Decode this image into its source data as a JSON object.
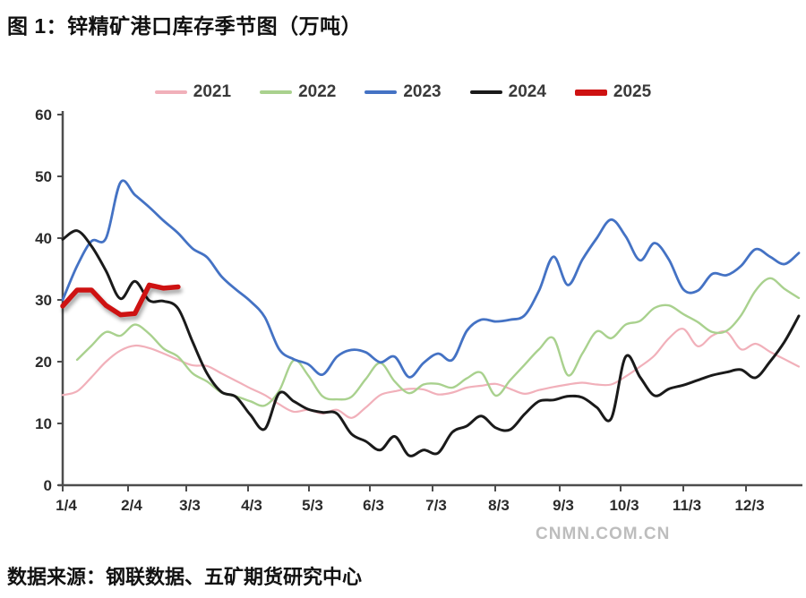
{
  "title": "图 1：锌精矿港口库存季节图（万吨）",
  "source": "数据来源：钢联数据、五矿期货研究中心",
  "watermark": "CNMN.COM.CN",
  "chart_data": {
    "type": "line",
    "title": "锌精矿港口库存季节图",
    "unit": "万吨",
    "x_axis": "weekly dates, overlaid seasonal years",
    "x_tick_labels": [
      "1/4",
      "2/4",
      "3/3",
      "4/3",
      "5/3",
      "6/3",
      "7/3",
      "8/3",
      "9/3",
      "10/3",
      "11/3",
      "12/3"
    ],
    "ylim": [
      0,
      60
    ],
    "y_ticks": [
      0,
      10,
      20,
      30,
      40,
      50,
      60
    ],
    "grid": false,
    "legend_position": "top",
    "series": [
      {
        "name": "2021",
        "color": "#f1b0ba",
        "width": 2.2,
        "start_week": 0,
        "smooth": true,
        "values": [
          14.6,
          15.2,
          17.5,
          20.0,
          21.8,
          22.6,
          22.2,
          21.3,
          20.3,
          19.4,
          19.3,
          18.1,
          16.9,
          15.7,
          14.6,
          13.1,
          11.9,
          12.2,
          11.6,
          12.2,
          10.9,
          12.6,
          14.6,
          15.2,
          15.6,
          15.5,
          14.7,
          15.0,
          15.8,
          16.1,
          16.4,
          15.6,
          14.8,
          15.4,
          15.9,
          16.3,
          16.6,
          16.3,
          16.3,
          17.6,
          19.2,
          21.0,
          23.8,
          25.3,
          22.5,
          24.2,
          24.8,
          22.0,
          22.9,
          21.6,
          20.4,
          19.2
        ]
      },
      {
        "name": "2022",
        "color": "#a9d18e",
        "width": 2.4,
        "start_week": 1,
        "smooth": true,
        "values": [
          20.3,
          22.6,
          24.8,
          24.2,
          26.0,
          24.5,
          22.1,
          20.8,
          18.1,
          16.8,
          15.0,
          14.4,
          13.6,
          12.9,
          15.3,
          20.2,
          17.8,
          14.4,
          13.9,
          14.3,
          17.2,
          19.8,
          16.8,
          14.9,
          16.3,
          16.4,
          15.8,
          17.3,
          18.2,
          14.5,
          17.0,
          19.5,
          22.0,
          23.8,
          17.8,
          21.3,
          24.9,
          23.8,
          26.0,
          26.6,
          28.7,
          29.1,
          27.7,
          26.4,
          24.8,
          25.0,
          27.5,
          31.5,
          33.5,
          31.8,
          30.3
        ]
      },
      {
        "name": "2023",
        "color": "#4472c4",
        "width": 2.8,
        "start_week": 0,
        "smooth": true,
        "values": [
          30.0,
          35.5,
          39.5,
          40.0,
          49.0,
          47.0,
          45.0,
          42.8,
          40.8,
          38.3,
          36.9,
          33.8,
          31.7,
          29.8,
          27.2,
          22.0,
          20.4,
          19.6,
          17.9,
          20.8,
          21.9,
          21.5,
          19.9,
          20.8,
          17.5,
          19.8,
          21.3,
          20.3,
          25.0,
          26.8,
          26.5,
          26.8,
          27.5,
          31.5,
          37.0,
          32.4,
          36.5,
          40.0,
          43.0,
          40.3,
          36.4,
          39.2,
          36.5,
          31.7,
          31.5,
          34.2,
          34.0,
          35.5,
          38.2,
          37.0,
          35.8,
          37.6
        ]
      },
      {
        "name": "2024",
        "color": "#1a1a1a",
        "width": 3.0,
        "start_week": 0,
        "smooth": true,
        "values": [
          39.8,
          41.2,
          38.7,
          34.7,
          30.2,
          33.0,
          29.9,
          29.8,
          28.6,
          23.2,
          18.1,
          15.1,
          14.3,
          11.4,
          9.1,
          14.9,
          13.6,
          12.3,
          11.8,
          11.6,
          8.3,
          7.1,
          5.7,
          7.9,
          4.8,
          5.7,
          5.2,
          8.6,
          9.6,
          11.2,
          9.3,
          9.0,
          11.5,
          13.6,
          13.8,
          14.4,
          14.2,
          12.6,
          10.8,
          20.8,
          17.5,
          14.5,
          15.6,
          16.2,
          17.0,
          17.8,
          18.3,
          18.7,
          17.4,
          20.0,
          23.2,
          27.4
        ]
      },
      {
        "name": "2025",
        "color": "#ce1212",
        "width": 5.5,
        "start_week": 0,
        "smooth": false,
        "shadow": true,
        "values": [
          29.0,
          31.6,
          31.6,
          29.1,
          27.6,
          27.8,
          32.4,
          31.9,
          32.1
        ]
      }
    ]
  }
}
